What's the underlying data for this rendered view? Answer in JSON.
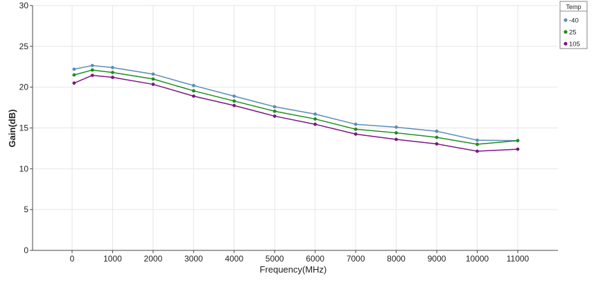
{
  "chart_data": {
    "type": "line",
    "title": "",
    "xlabel": "Frequency(MHz)",
    "ylabel": "Gain(dB)",
    "xlim": [
      -1000,
      12000
    ],
    "ylim": [
      0,
      30
    ],
    "x_ticks": [
      0,
      1000,
      2000,
      3000,
      4000,
      5000,
      6000,
      7000,
      8000,
      9000,
      10000,
      11000
    ],
    "y_ticks": [
      0,
      5,
      10,
      15,
      20,
      25,
      30
    ],
    "grid": true,
    "legend": {
      "title": "Temp",
      "placement": "top-right"
    },
    "x": [
      50,
      500,
      1000,
      2000,
      3000,
      4000,
      5000,
      6000,
      7000,
      8000,
      9000,
      10000,
      11000
    ],
    "series": [
      {
        "name": "-40",
        "color": "#5b8db8",
        "values": [
          22.2,
          22.65,
          22.4,
          21.6,
          20.2,
          18.9,
          17.6,
          16.7,
          15.45,
          15.1,
          14.6,
          13.5,
          13.45
        ]
      },
      {
        "name": "25",
        "color": "#1e8c1e",
        "values": [
          21.5,
          22.1,
          21.8,
          21.0,
          19.55,
          18.3,
          17.05,
          16.1,
          14.85,
          14.4,
          13.85,
          13.0,
          13.45
        ]
      },
      {
        "name": "105",
        "color": "#7d1583",
        "values": [
          20.5,
          21.45,
          21.2,
          20.35,
          18.9,
          17.75,
          16.45,
          15.45,
          14.25,
          13.6,
          13.05,
          12.15,
          12.4
        ]
      }
    ]
  }
}
